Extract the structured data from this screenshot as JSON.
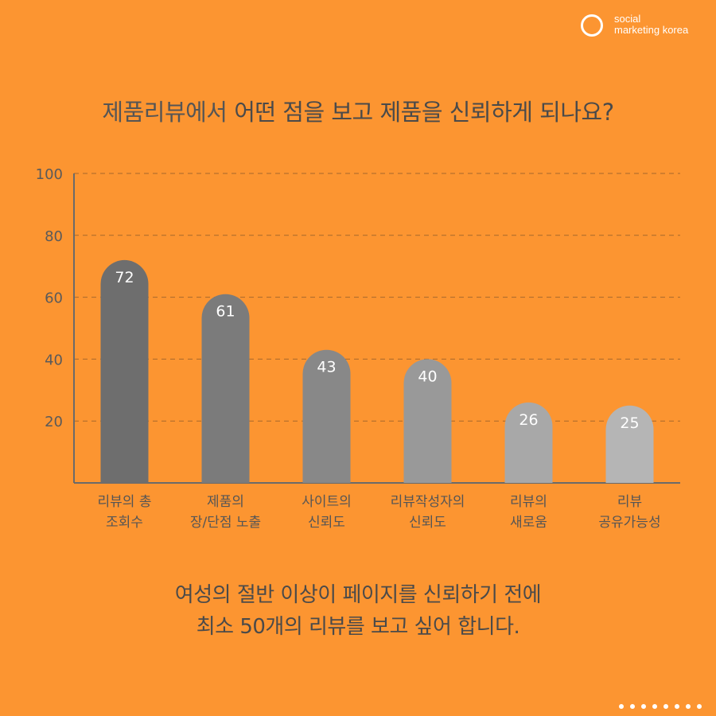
{
  "brand": {
    "line1": "social",
    "line2": "marketing korea"
  },
  "title": {
    "part1": "제품리뷰에서 ",
    "part2": "어떤 점을 보고 제품을 신뢰하게 되나요?"
  },
  "chart_data": {
    "type": "bar",
    "categories": [
      [
        "리뷰의 총",
        "조회수"
      ],
      [
        "제품의",
        "장/단점 노출"
      ],
      [
        "사이트의",
        "신뢰도"
      ],
      [
        "리뷰작성자의",
        "신뢰도"
      ],
      [
        "리뷰의",
        "새로움"
      ],
      [
        "리뷰",
        "공유가능성"
      ]
    ],
    "values": [
      72,
      61,
      43,
      40,
      26,
      25
    ],
    "bar_colors": [
      "#6e6e6e",
      "#7b7b7b",
      "#888888",
      "#999999",
      "#a8a8a8",
      "#b5b5b5"
    ],
    "ylim": [
      0,
      100
    ],
    "yticks": [
      20,
      40,
      60,
      80,
      100
    ],
    "grid": true,
    "title": "",
    "xlabel": "",
    "ylabel": ""
  },
  "note": {
    "line1": "여성의 절반 이상이 페이지를 신뢰하기 전에",
    "line2": "최소 50개의 리뷰를 보고 싶어 합니다."
  },
  "pager": {
    "count": 8
  }
}
